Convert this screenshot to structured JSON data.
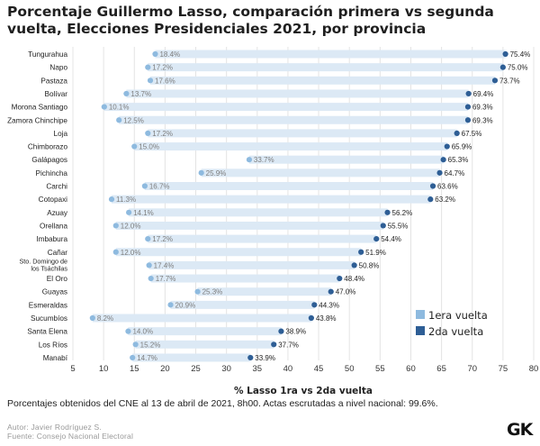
{
  "chart_data": {
    "type": "dumbbell",
    "title": "Porcentaje Guillermo Lasso, comparación primera vs segunda vuelta, Elecciones Presidenciales 2021, por provincia",
    "xlabel": "% Lasso 1ra vs 2da vuelta",
    "xlim": [
      5,
      80
    ],
    "xticks": [
      5,
      10,
      15,
      20,
      25,
      30,
      35,
      40,
      45,
      50,
      55,
      60,
      65,
      70,
      75,
      80
    ],
    "grid": true,
    "legend_position": "bottom-right",
    "categories": [
      "Tungurahua",
      "Napo",
      "Pastaza",
      "Bolívar",
      "Morona Santiago",
      "Zamora Chinchipe",
      "Loja",
      "Chimborazo",
      "Galápagos",
      "Pichincha",
      "Carchi",
      "Cotopaxi",
      "Azuay",
      "Orellana",
      "Imbabura",
      "Cañar",
      "Sto. Domingo de los Tsáchilas",
      "El Oro",
      "Guayas",
      "Esmeraldas",
      "Sucumbíos",
      "Santa Elena",
      "Los Ríos",
      "Manabí"
    ],
    "series": [
      {
        "name": "1era vuelta",
        "color": "#8ebadf",
        "values": [
          18.4,
          17.2,
          17.6,
          13.7,
          10.1,
          12.5,
          17.2,
          15.0,
          33.7,
          25.9,
          16.7,
          11.3,
          14.1,
          12.0,
          17.2,
          12.0,
          17.4,
          17.7,
          25.3,
          20.9,
          8.2,
          14.0,
          15.2,
          14.7
        ]
      },
      {
        "name": "2da vuelta",
        "color": "#2e5e95",
        "values": [
          75.4,
          75.0,
          73.7,
          69.4,
          69.3,
          69.3,
          67.5,
          65.9,
          65.3,
          64.7,
          63.6,
          63.2,
          56.2,
          55.5,
          54.4,
          51.9,
          50.8,
          48.4,
          47.0,
          44.3,
          43.8,
          38.9,
          37.7,
          33.9
        ]
      }
    ]
  },
  "range_color": "#dce9f5",
  "note": "Porcentajes obtenidos del CNE al 13 de abril de 2021, 8h00. Actas escrutadas a nivel nacional: 99.6%.",
  "credit_author": "Autor: Javier Rodríguez S.",
  "credit_source": "Fuente: Consejo Nacional Electoral",
  "logo": "GK"
}
